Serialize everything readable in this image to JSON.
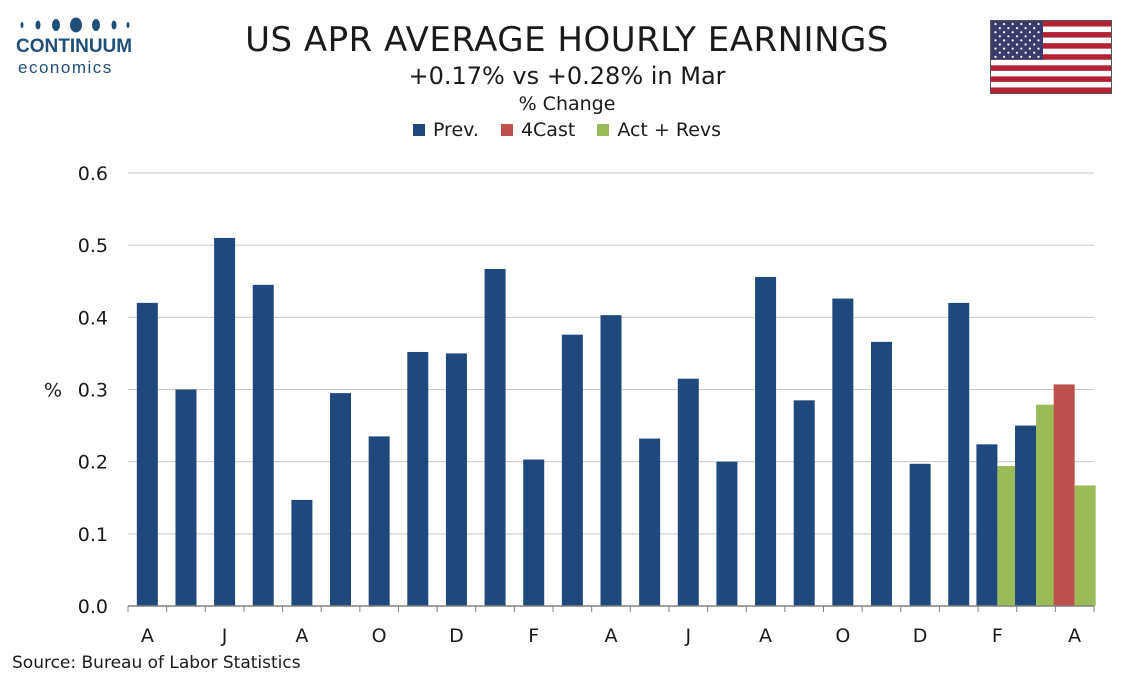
{
  "logo": {
    "line1": "CONTINUUM",
    "line2": "economics"
  },
  "colors": {
    "prev": "#1f497d",
    "forecast": "#c0504d",
    "actual": "#9bbb59",
    "grid": "#c8c8c8",
    "axis": "#808080"
  },
  "chart_data": {
    "type": "bar",
    "title": "US APR AVERAGE HOURLY EARNINGS",
    "subtitle": "+0.17% vs +0.28% in Mar",
    "unit_label": "% Change",
    "ylabel": "%",
    "ylim": [
      0,
      0.6
    ],
    "yticks": [
      "0.0",
      "0.1",
      "0.2",
      "0.3",
      "0.4",
      "0.5",
      "0.6"
    ],
    "grid": true,
    "legend_position": "top-center",
    "x_tick_labels": [
      "A",
      "J",
      "A",
      "O",
      "D",
      "F",
      "A",
      "J",
      "A",
      "O",
      "D",
      "F",
      "A"
    ],
    "series": [
      {
        "name": "Prev.",
        "key": "prev",
        "values": [
          0.42,
          0.3,
          0.51,
          0.445,
          0.147,
          0.295,
          0.235,
          0.352,
          0.35,
          0.467,
          0.203,
          0.376,
          0.403,
          0.232,
          0.315,
          0.2,
          0.456,
          0.285,
          0.426,
          0.366,
          0.197,
          0.42,
          0.224,
          0.25,
          null
        ]
      },
      {
        "name": "4Cast",
        "key": "forecast",
        "values": [
          null,
          null,
          null,
          null,
          null,
          null,
          null,
          null,
          null,
          null,
          null,
          null,
          null,
          null,
          null,
          null,
          null,
          null,
          null,
          null,
          null,
          null,
          null,
          null,
          0.307
        ]
      },
      {
        "name": "Act + Revs",
        "key": "actual",
        "values": [
          null,
          null,
          null,
          null,
          null,
          null,
          null,
          null,
          null,
          null,
          null,
          null,
          null,
          null,
          null,
          null,
          null,
          null,
          null,
          null,
          null,
          null,
          0.194,
          0.279,
          0.167
        ]
      }
    ]
  },
  "source": "Source: Bureau of Labor Statistics"
}
